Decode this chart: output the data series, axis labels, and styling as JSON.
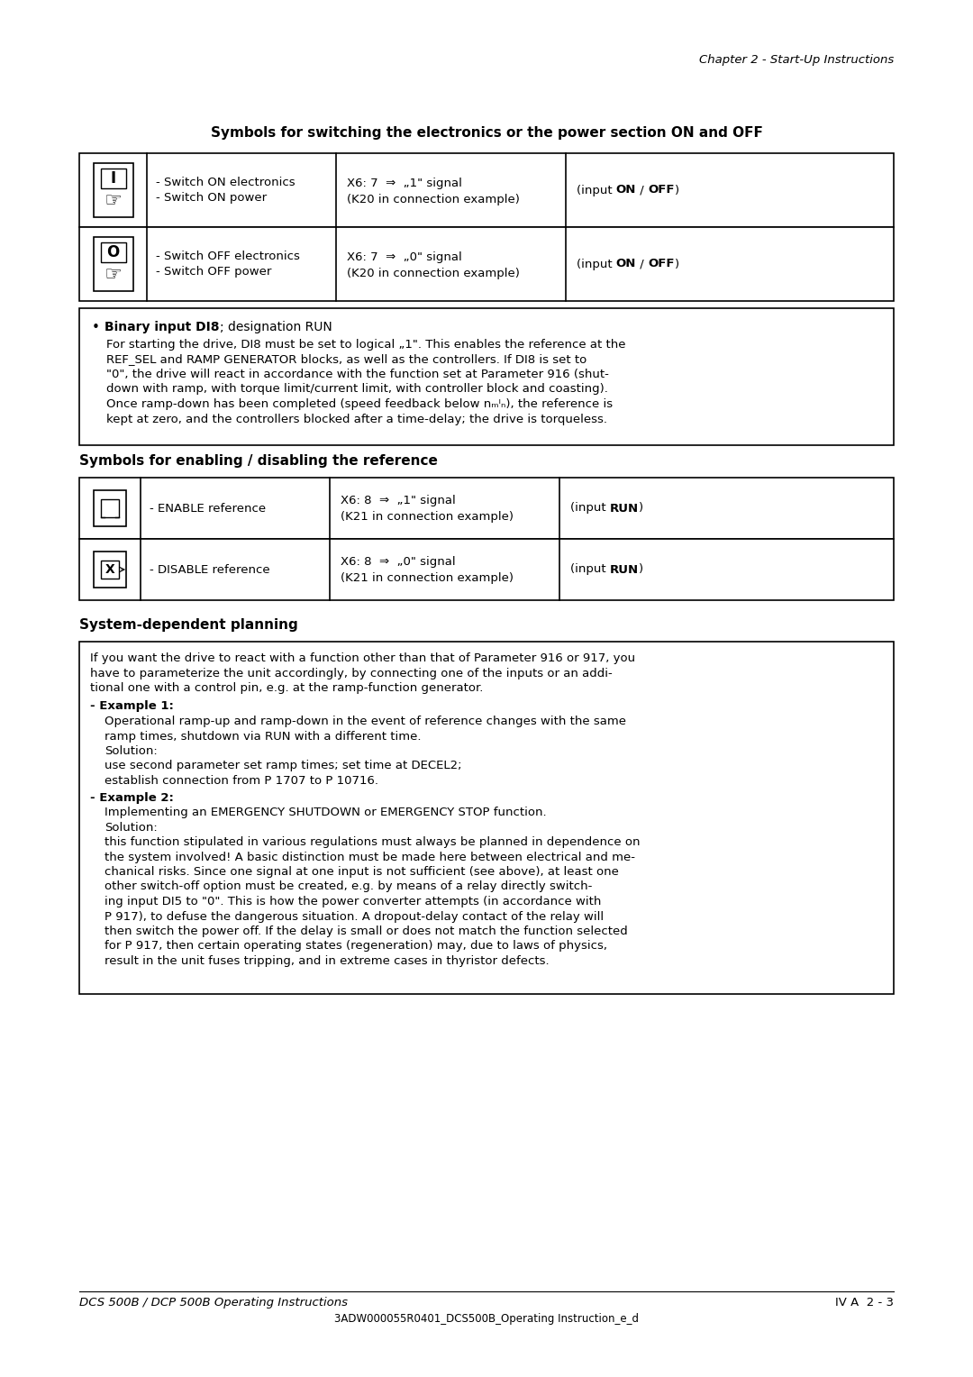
{
  "page_header": "Chapter 2 - Start-Up Instructions",
  "section1_title": "Symbols for switching the electronics or the power section ON and OFF",
  "table1_rows": [
    {
      "col2": "- Switch ON electronics\n- Switch ON power",
      "col3_line1": "X6: 7  ⇒  „1\" signal",
      "col3_line2": "(K20 in connection example)",
      "col4_pre": "(input ",
      "col4_bold1": "ON",
      "col4_sep": " / ",
      "col4_bold2": "OFF",
      "col4_post": ")"
    },
    {
      "col2": "- Switch OFF electronics\n- Switch OFF power",
      "col3_line1": "X6: 7  ⇒  „0\" signal",
      "col3_line2": "(K20 in connection example)",
      "col4_pre": "(input ",
      "col4_bold1": "ON",
      "col4_sep": " / ",
      "col4_bold2": "OFF",
      "col4_post": ")"
    }
  ],
  "bullet_title_bold": "Binary input DI8",
  "bullet_title_normal": "; designation RUN",
  "bullet_body_lines": [
    "For starting the drive, DI8 must be set to logical „1\". This enables the reference at the",
    "REF_SEL and RAMP GENERATOR blocks, as well as the controllers. If DI8 is set to",
    "\"0\", the drive will react in accordance with the function set at Parameter 916 (shut-",
    "down with ramp, with torque limit/current limit, with controller block and coasting).",
    "Once ramp-down has been completed (speed feedback below nₘᴵₙ), the reference is",
    "kept at zero, and the controllers blocked after a time-delay; the drive is torqueless."
  ],
  "section2_title": "Symbols for enabling / disabling the reference",
  "table2_rows": [
    {
      "col2": "- ENABLE reference",
      "col3_line1": "X6: 8  ⇒  „1\" signal",
      "col3_line2": "(K21 in connection example)",
      "col4_pre": "(input ",
      "col4_bold1": "RUN",
      "col4_post": ")"
    },
    {
      "col2": "- DISABLE reference",
      "col3_line1": "X6: 8  ⇒  „0\" signal",
      "col3_line2": "(K21 in connection example)",
      "col4_pre": "(input ",
      "col4_bold1": "RUN",
      "col4_post": ")"
    }
  ],
  "section3_title": "System-dependent planning",
  "section3_intro_lines": [
    "If you want the drive to react with a function other than that of Parameter 916 or 917, you",
    "have to parameterize the unit accordingly, by connecting one of the inputs or an addi-",
    "tional one with a control pin, e.g. at the ramp-function generator."
  ],
  "example1_label": "- Example 1:",
  "example1_body_lines": [
    "Operational ramp-up and ramp-down in the event of reference changes with the same",
    "ramp times, shutdown via RUN with a different time.",
    "Solution:",
    "use second parameter set ramp times; set time at DECEL2;",
    "establish connection from P 1707 to P 10716."
  ],
  "example2_label": "- Example 2:",
  "example2_body_lines": [
    "Implementing an EMERGENCY SHUTDOWN or EMERGENCY STOP function.",
    "Solution:",
    "this function stipulated in various regulations must always be planned in dependence on",
    "the system involved! A basic distinction must be made here between electrical and me-",
    "chanical risks. Since one signal at one input is not sufficient (see above), at least one",
    "other switch-off option must be created, e.g. by means of a relay directly switch-",
    "ing input DI5 to \"0\". This is how the power converter attempts (in accordance with",
    "P 917), to defuse the dangerous situation. A dropout-delay contact of the relay will",
    "then switch the power off. If the delay is small or does not match the function selected",
    "for P 917, then certain operating states (regeneration) may, due to laws of physics,",
    "result in the unit fuses tripping, and in extreme cases in thyristor defects."
  ],
  "footer_left": "DCS 500B / DCP 500B Operating Instructions",
  "footer_right": "IV A  2 - 3",
  "footer_center": "3ADW000055R0401_DCS500B_Operating Instruction_e_d",
  "bg_color": "#ffffff",
  "text_color": "#000000",
  "border_color": "#000000"
}
